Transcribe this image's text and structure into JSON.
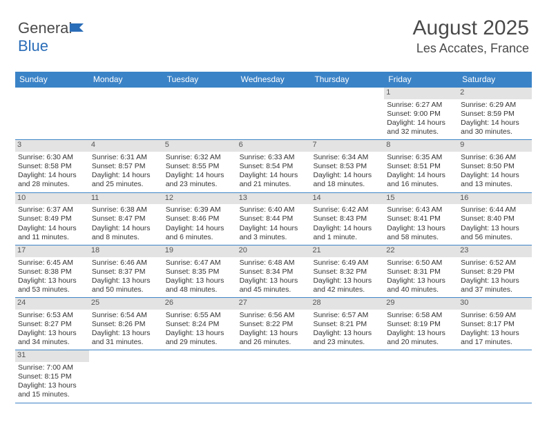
{
  "brand": {
    "part1": "General",
    "part2": "Blue"
  },
  "title": {
    "month": "August 2025",
    "location": "Les Accates, France"
  },
  "colors": {
    "header_bg": "#3b83c7",
    "header_text": "#ffffff",
    "row_border": "#3b83c7",
    "daynum_bg": "#e3e3e3",
    "text": "#333333",
    "title_text": "#4a4a4a",
    "brand_blue": "#2a6db8"
  },
  "weekdays": [
    "Sunday",
    "Monday",
    "Tuesday",
    "Wednesday",
    "Thursday",
    "Friday",
    "Saturday"
  ],
  "weeks": [
    [
      null,
      null,
      null,
      null,
      null,
      {
        "d": "1",
        "sr": "Sunrise: 6:27 AM",
        "ss": "Sunset: 9:00 PM",
        "dl1": "Daylight: 14 hours",
        "dl2": "and 32 minutes."
      },
      {
        "d": "2",
        "sr": "Sunrise: 6:29 AM",
        "ss": "Sunset: 8:59 PM",
        "dl1": "Daylight: 14 hours",
        "dl2": "and 30 minutes."
      }
    ],
    [
      {
        "d": "3",
        "sr": "Sunrise: 6:30 AM",
        "ss": "Sunset: 8:58 PM",
        "dl1": "Daylight: 14 hours",
        "dl2": "and 28 minutes."
      },
      {
        "d": "4",
        "sr": "Sunrise: 6:31 AM",
        "ss": "Sunset: 8:57 PM",
        "dl1": "Daylight: 14 hours",
        "dl2": "and 25 minutes."
      },
      {
        "d": "5",
        "sr": "Sunrise: 6:32 AM",
        "ss": "Sunset: 8:55 PM",
        "dl1": "Daylight: 14 hours",
        "dl2": "and 23 minutes."
      },
      {
        "d": "6",
        "sr": "Sunrise: 6:33 AM",
        "ss": "Sunset: 8:54 PM",
        "dl1": "Daylight: 14 hours",
        "dl2": "and 21 minutes."
      },
      {
        "d": "7",
        "sr": "Sunrise: 6:34 AM",
        "ss": "Sunset: 8:53 PM",
        "dl1": "Daylight: 14 hours",
        "dl2": "and 18 minutes."
      },
      {
        "d": "8",
        "sr": "Sunrise: 6:35 AM",
        "ss": "Sunset: 8:51 PM",
        "dl1": "Daylight: 14 hours",
        "dl2": "and 16 minutes."
      },
      {
        "d": "9",
        "sr": "Sunrise: 6:36 AM",
        "ss": "Sunset: 8:50 PM",
        "dl1": "Daylight: 14 hours",
        "dl2": "and 13 minutes."
      }
    ],
    [
      {
        "d": "10",
        "sr": "Sunrise: 6:37 AM",
        "ss": "Sunset: 8:49 PM",
        "dl1": "Daylight: 14 hours",
        "dl2": "and 11 minutes."
      },
      {
        "d": "11",
        "sr": "Sunrise: 6:38 AM",
        "ss": "Sunset: 8:47 PM",
        "dl1": "Daylight: 14 hours",
        "dl2": "and 8 minutes."
      },
      {
        "d": "12",
        "sr": "Sunrise: 6:39 AM",
        "ss": "Sunset: 8:46 PM",
        "dl1": "Daylight: 14 hours",
        "dl2": "and 6 minutes."
      },
      {
        "d": "13",
        "sr": "Sunrise: 6:40 AM",
        "ss": "Sunset: 8:44 PM",
        "dl1": "Daylight: 14 hours",
        "dl2": "and 3 minutes."
      },
      {
        "d": "14",
        "sr": "Sunrise: 6:42 AM",
        "ss": "Sunset: 8:43 PM",
        "dl1": "Daylight: 14 hours",
        "dl2": "and 1 minute."
      },
      {
        "d": "15",
        "sr": "Sunrise: 6:43 AM",
        "ss": "Sunset: 8:41 PM",
        "dl1": "Daylight: 13 hours",
        "dl2": "and 58 minutes."
      },
      {
        "d": "16",
        "sr": "Sunrise: 6:44 AM",
        "ss": "Sunset: 8:40 PM",
        "dl1": "Daylight: 13 hours",
        "dl2": "and 56 minutes."
      }
    ],
    [
      {
        "d": "17",
        "sr": "Sunrise: 6:45 AM",
        "ss": "Sunset: 8:38 PM",
        "dl1": "Daylight: 13 hours",
        "dl2": "and 53 minutes."
      },
      {
        "d": "18",
        "sr": "Sunrise: 6:46 AM",
        "ss": "Sunset: 8:37 PM",
        "dl1": "Daylight: 13 hours",
        "dl2": "and 50 minutes."
      },
      {
        "d": "19",
        "sr": "Sunrise: 6:47 AM",
        "ss": "Sunset: 8:35 PM",
        "dl1": "Daylight: 13 hours",
        "dl2": "and 48 minutes."
      },
      {
        "d": "20",
        "sr": "Sunrise: 6:48 AM",
        "ss": "Sunset: 8:34 PM",
        "dl1": "Daylight: 13 hours",
        "dl2": "and 45 minutes."
      },
      {
        "d": "21",
        "sr": "Sunrise: 6:49 AM",
        "ss": "Sunset: 8:32 PM",
        "dl1": "Daylight: 13 hours",
        "dl2": "and 42 minutes."
      },
      {
        "d": "22",
        "sr": "Sunrise: 6:50 AM",
        "ss": "Sunset: 8:31 PM",
        "dl1": "Daylight: 13 hours",
        "dl2": "and 40 minutes."
      },
      {
        "d": "23",
        "sr": "Sunrise: 6:52 AM",
        "ss": "Sunset: 8:29 PM",
        "dl1": "Daylight: 13 hours",
        "dl2": "and 37 minutes."
      }
    ],
    [
      {
        "d": "24",
        "sr": "Sunrise: 6:53 AM",
        "ss": "Sunset: 8:27 PM",
        "dl1": "Daylight: 13 hours",
        "dl2": "and 34 minutes."
      },
      {
        "d": "25",
        "sr": "Sunrise: 6:54 AM",
        "ss": "Sunset: 8:26 PM",
        "dl1": "Daylight: 13 hours",
        "dl2": "and 31 minutes."
      },
      {
        "d": "26",
        "sr": "Sunrise: 6:55 AM",
        "ss": "Sunset: 8:24 PM",
        "dl1": "Daylight: 13 hours",
        "dl2": "and 29 minutes."
      },
      {
        "d": "27",
        "sr": "Sunrise: 6:56 AM",
        "ss": "Sunset: 8:22 PM",
        "dl1": "Daylight: 13 hours",
        "dl2": "and 26 minutes."
      },
      {
        "d": "28",
        "sr": "Sunrise: 6:57 AM",
        "ss": "Sunset: 8:21 PM",
        "dl1": "Daylight: 13 hours",
        "dl2": "and 23 minutes."
      },
      {
        "d": "29",
        "sr": "Sunrise: 6:58 AM",
        "ss": "Sunset: 8:19 PM",
        "dl1": "Daylight: 13 hours",
        "dl2": "and 20 minutes."
      },
      {
        "d": "30",
        "sr": "Sunrise: 6:59 AM",
        "ss": "Sunset: 8:17 PM",
        "dl1": "Daylight: 13 hours",
        "dl2": "and 17 minutes."
      }
    ],
    [
      {
        "d": "31",
        "sr": "Sunrise: 7:00 AM",
        "ss": "Sunset: 8:15 PM",
        "dl1": "Daylight: 13 hours",
        "dl2": "and 15 minutes."
      },
      null,
      null,
      null,
      null,
      null,
      null
    ]
  ]
}
